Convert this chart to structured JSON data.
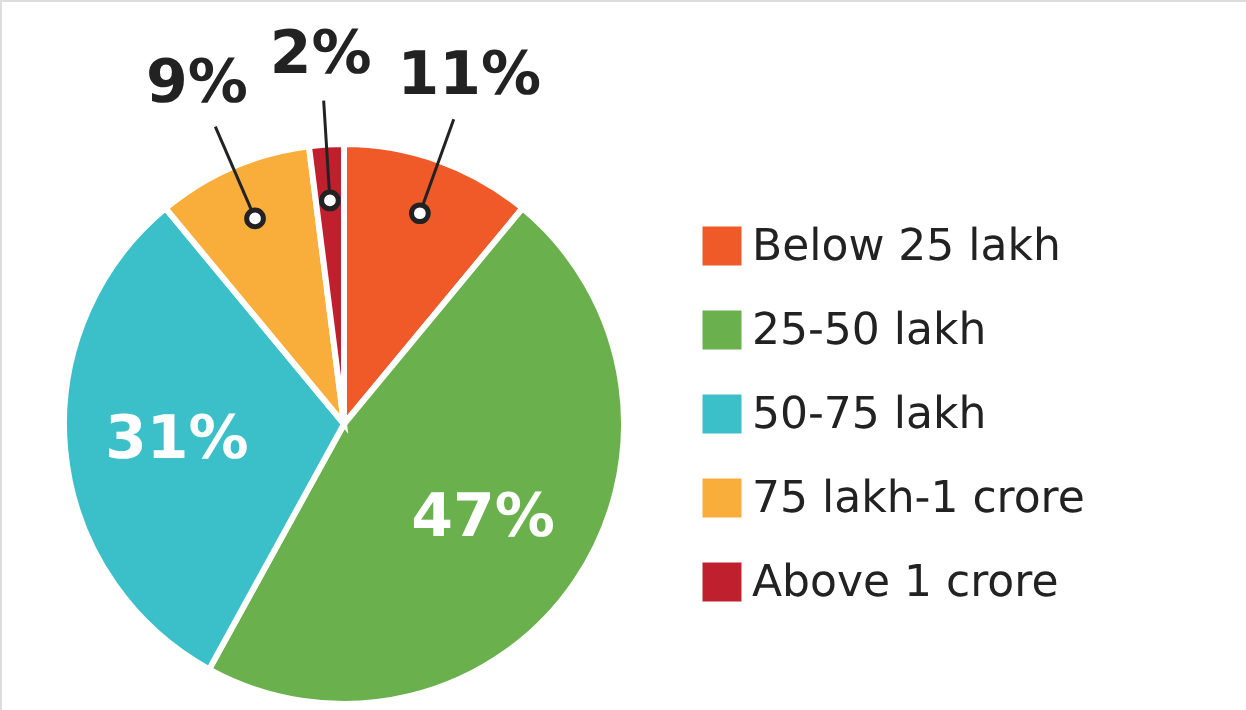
{
  "chart_data": {
    "type": "pie",
    "categories": [
      "Below 25 lakh",
      "25-50 lakh",
      "50-75 lakh",
      "75 lakh-1 crore",
      "Above 1 crore"
    ],
    "values": [
      11,
      47,
      31,
      9,
      2
    ],
    "colors": [
      "#f05a28",
      "#6ab04c",
      "#3bbfc8",
      "#f9ae3b",
      "#c0202e"
    ],
    "value_labels": [
      "11%",
      "47%",
      "31%",
      "9%",
      "2%"
    ],
    "legend": "right"
  }
}
